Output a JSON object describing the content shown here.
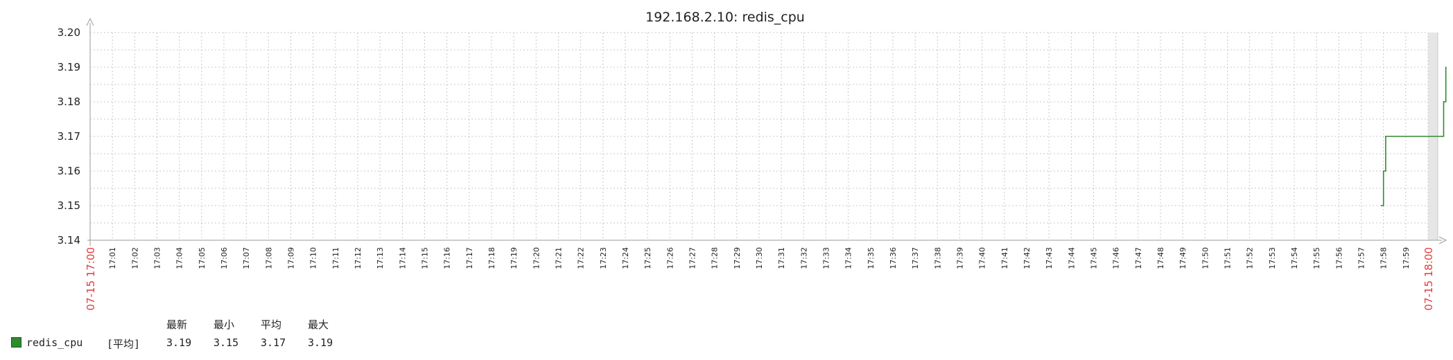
{
  "chart_data": {
    "type": "line",
    "title": "192.168.2.10: redis_cpu",
    "ylim": [
      3.14,
      3.2
    ],
    "yticks": [
      "3.20",
      "3.19",
      "3.18",
      "3.17",
      "3.16",
      "3.15",
      "3.14"
    ],
    "x_major_labels": [
      "07-15 17:00",
      "07-15 18:00"
    ],
    "x_minor_labels": [
      "17:01",
      "17:02",
      "17:03",
      "17:04",
      "17:05",
      "17:06",
      "17:07",
      "17:08",
      "17:09",
      "17:10",
      "17:11",
      "17:12",
      "17:13",
      "17:14",
      "17:15",
      "17:16",
      "17:17",
      "17:18",
      "17:19",
      "17:20",
      "17:21",
      "17:22",
      "17:23",
      "17:24",
      "17:25",
      "17:26",
      "17:27",
      "17:28",
      "17:29",
      "17:30",
      "17:31",
      "17:32",
      "17:33",
      "17:34",
      "17:35",
      "17:36",
      "17:37",
      "17:38",
      "17:39",
      "17:40",
      "17:41",
      "17:42",
      "17:43",
      "17:44",
      "17:45",
      "17:46",
      "17:47",
      "17:48",
      "17:49",
      "17:50",
      "17:51",
      "17:52",
      "17:53",
      "17:54",
      "17:55",
      "17:56",
      "17:57",
      "17:58",
      "17:59"
    ],
    "grid": true,
    "legend_position": "bottom-left",
    "series": [
      {
        "name": "redis_cpu",
        "color": "#2e8b2e",
        "points": [
          {
            "x": "17:57.9",
            "y": 3.15
          },
          {
            "x": "17:58.0",
            "y": 3.16
          },
          {
            "x": "17:58.1",
            "y": 3.17
          },
          {
            "x": "18:00.6",
            "y": 3.17
          },
          {
            "x": "18:00.7",
            "y": 3.18
          },
          {
            "x": "18:00.8",
            "y": 3.19
          }
        ]
      }
    ]
  },
  "legend": {
    "headers": [
      "最新",
      "最小",
      "平均",
      "最大"
    ],
    "rows": [
      {
        "name": "redis_cpu",
        "func": "[平均]",
        "last": "3.19",
        "min": "3.15",
        "avg": "3.17",
        "max": "3.19"
      }
    ]
  }
}
